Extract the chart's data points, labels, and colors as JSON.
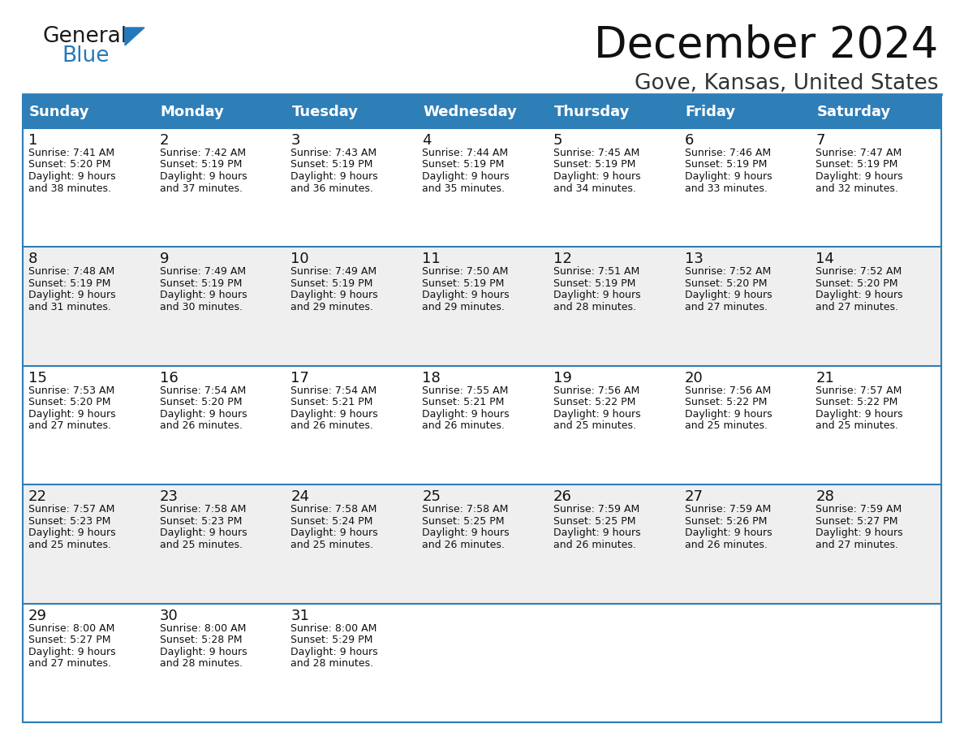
{
  "title": "December 2024",
  "subtitle": "Gove, Kansas, United States",
  "header_bg_color": "#2E7EB8",
  "header_text_color": "#FFFFFF",
  "cell_bg_color_odd": "#EFEFEF",
  "cell_bg_color_even": "#FFFFFF",
  "grid_line_color": "#2E7EB8",
  "day_headers": [
    "Sunday",
    "Monday",
    "Tuesday",
    "Wednesday",
    "Thursday",
    "Friday",
    "Saturday"
  ],
  "weeks": [
    [
      {
        "day": 1,
        "sunrise": "7:41 AM",
        "sunset": "5:20 PM",
        "daylight": "9 hours and 38 minutes"
      },
      {
        "day": 2,
        "sunrise": "7:42 AM",
        "sunset": "5:19 PM",
        "daylight": "9 hours and 37 minutes"
      },
      {
        "day": 3,
        "sunrise": "7:43 AM",
        "sunset": "5:19 PM",
        "daylight": "9 hours and 36 minutes"
      },
      {
        "day": 4,
        "sunrise": "7:44 AM",
        "sunset": "5:19 PM",
        "daylight": "9 hours and 35 minutes"
      },
      {
        "day": 5,
        "sunrise": "7:45 AM",
        "sunset": "5:19 PM",
        "daylight": "9 hours and 34 minutes"
      },
      {
        "day": 6,
        "sunrise": "7:46 AM",
        "sunset": "5:19 PM",
        "daylight": "9 hours and 33 minutes"
      },
      {
        "day": 7,
        "sunrise": "7:47 AM",
        "sunset": "5:19 PM",
        "daylight": "9 hours and 32 minutes"
      }
    ],
    [
      {
        "day": 8,
        "sunrise": "7:48 AM",
        "sunset": "5:19 PM",
        "daylight": "9 hours and 31 minutes"
      },
      {
        "day": 9,
        "sunrise": "7:49 AM",
        "sunset": "5:19 PM",
        "daylight": "9 hours and 30 minutes"
      },
      {
        "day": 10,
        "sunrise": "7:49 AM",
        "sunset": "5:19 PM",
        "daylight": "9 hours and 29 minutes"
      },
      {
        "day": 11,
        "sunrise": "7:50 AM",
        "sunset": "5:19 PM",
        "daylight": "9 hours and 29 minutes"
      },
      {
        "day": 12,
        "sunrise": "7:51 AM",
        "sunset": "5:19 PM",
        "daylight": "9 hours and 28 minutes"
      },
      {
        "day": 13,
        "sunrise": "7:52 AM",
        "sunset": "5:20 PM",
        "daylight": "9 hours and 27 minutes"
      },
      {
        "day": 14,
        "sunrise": "7:52 AM",
        "sunset": "5:20 PM",
        "daylight": "9 hours and 27 minutes"
      }
    ],
    [
      {
        "day": 15,
        "sunrise": "7:53 AM",
        "sunset": "5:20 PM",
        "daylight": "9 hours and 27 minutes"
      },
      {
        "day": 16,
        "sunrise": "7:54 AM",
        "sunset": "5:20 PM",
        "daylight": "9 hours and 26 minutes"
      },
      {
        "day": 17,
        "sunrise": "7:54 AM",
        "sunset": "5:21 PM",
        "daylight": "9 hours and 26 minutes"
      },
      {
        "day": 18,
        "sunrise": "7:55 AM",
        "sunset": "5:21 PM",
        "daylight": "9 hours and 26 minutes"
      },
      {
        "day": 19,
        "sunrise": "7:56 AM",
        "sunset": "5:22 PM",
        "daylight": "9 hours and 25 minutes"
      },
      {
        "day": 20,
        "sunrise": "7:56 AM",
        "sunset": "5:22 PM",
        "daylight": "9 hours and 25 minutes"
      },
      {
        "day": 21,
        "sunrise": "7:57 AM",
        "sunset": "5:22 PM",
        "daylight": "9 hours and 25 minutes"
      }
    ],
    [
      {
        "day": 22,
        "sunrise": "7:57 AM",
        "sunset": "5:23 PM",
        "daylight": "9 hours and 25 minutes"
      },
      {
        "day": 23,
        "sunrise": "7:58 AM",
        "sunset": "5:23 PM",
        "daylight": "9 hours and 25 minutes"
      },
      {
        "day": 24,
        "sunrise": "7:58 AM",
        "sunset": "5:24 PM",
        "daylight": "9 hours and 25 minutes"
      },
      {
        "day": 25,
        "sunrise": "7:58 AM",
        "sunset": "5:25 PM",
        "daylight": "9 hours and 26 minutes"
      },
      {
        "day": 26,
        "sunrise": "7:59 AM",
        "sunset": "5:25 PM",
        "daylight": "9 hours and 26 minutes"
      },
      {
        "day": 27,
        "sunrise": "7:59 AM",
        "sunset": "5:26 PM",
        "daylight": "9 hours and 26 minutes"
      },
      {
        "day": 28,
        "sunrise": "7:59 AM",
        "sunset": "5:27 PM",
        "daylight": "9 hours and 27 minutes"
      }
    ],
    [
      {
        "day": 29,
        "sunrise": "8:00 AM",
        "sunset": "5:27 PM",
        "daylight": "9 hours and 27 minutes"
      },
      {
        "day": 30,
        "sunrise": "8:00 AM",
        "sunset": "5:28 PM",
        "daylight": "9 hours and 28 minutes"
      },
      {
        "day": 31,
        "sunrise": "8:00 AM",
        "sunset": "5:29 PM",
        "daylight": "9 hours and 28 minutes"
      },
      null,
      null,
      null,
      null
    ]
  ],
  "logo_text1": "General",
  "logo_text2": "Blue",
  "logo_color1": "#1a1a1a",
  "logo_color2": "#2479BB",
  "title_fontsize": 38,
  "subtitle_fontsize": 19,
  "header_fontsize": 13,
  "day_num_fontsize": 13,
  "cell_fontsize": 9
}
